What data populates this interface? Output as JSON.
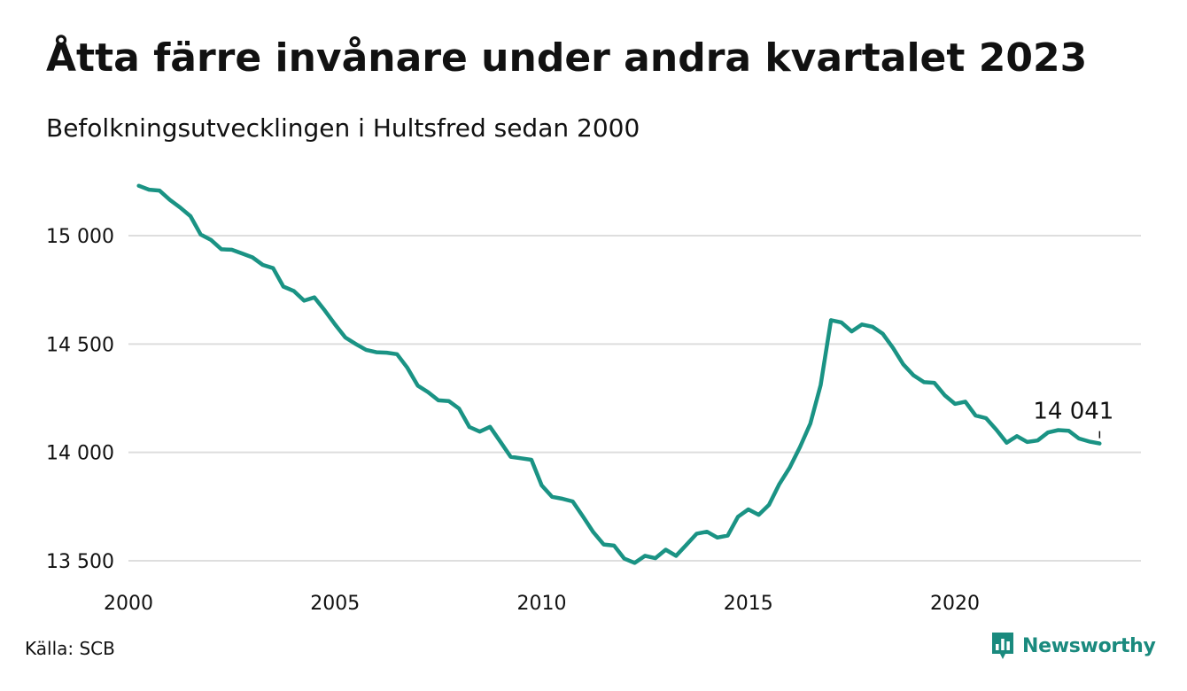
{
  "header": {
    "title": "Åtta färre invånare under andra kvartalet 2023",
    "subtitle": "Befolkningsutvecklingen i Hultsfred sedan 2000"
  },
  "footer": {
    "source": "Källa: SCB",
    "brand": "Newsworthy",
    "brand_icon": "bar-chart-speech-bubble-icon",
    "brand_color": "#1a8a7e"
  },
  "chart_data": {
    "type": "line",
    "title": "Åtta färre invånare under andra kvartalet 2023",
    "subtitle": "Befolkningsutvecklingen i Hultsfred sedan 2000",
    "xlabel": "",
    "ylabel": "",
    "xlim": [
      2000,
      2024.5
    ],
    "ylim": [
      13450,
      15250
    ],
    "x_ticks": [
      2000,
      2005,
      2010,
      2015,
      2020
    ],
    "x_tick_labels": [
      "2000",
      "2005",
      "2010",
      "2015",
      "2020"
    ],
    "y_ticks": [
      13500,
      14000,
      14500,
      15000
    ],
    "y_tick_labels": [
      "13 500",
      "14 000",
      "14 500",
      "15 000"
    ],
    "grid": "horizontal",
    "legend": "none",
    "line_color": "#1a9384",
    "end_label": "14 041",
    "series": [
      {
        "x": [
          2000.25,
          2000.5,
          2000.75,
          2001.0,
          2001.25,
          2001.5,
          2001.75,
          2002.0,
          2002.25,
          2002.5,
          2002.75,
          2003.0,
          2003.25,
          2003.5,
          2003.75,
          2004.0,
          2004.25,
          2004.5,
          2004.75,
          2005.0,
          2005.25,
          2005.5,
          2005.75,
          2006.0,
          2006.25,
          2006.5,
          2006.75,
          2007.0,
          2007.25,
          2007.5,
          2007.75,
          2008.0,
          2008.25,
          2008.5,
          2008.75,
          2009.0,
          2009.25,
          2009.5,
          2009.75,
          2010.0,
          2010.25,
          2010.5,
          2010.75,
          2011.0,
          2011.25,
          2011.5,
          2011.75,
          2012.0,
          2012.25,
          2012.5,
          2012.75,
          2013.0,
          2013.25,
          2013.5,
          2013.75,
          2014.0,
          2014.25,
          2014.5,
          2014.75,
          2015.0,
          2015.25,
          2015.5,
          2015.75,
          2016.0,
          2016.25,
          2016.5,
          2016.75,
          2017.0,
          2017.25,
          2017.5,
          2017.75,
          2018.0,
          2018.25,
          2018.5,
          2018.75,
          2019.0,
          2019.25,
          2019.5,
          2019.75,
          2020.0,
          2020.25,
          2020.5,
          2020.75,
          2021.0,
          2021.25,
          2021.5,
          2021.75,
          2022.0,
          2022.25,
          2022.5,
          2022.75,
          2023.0,
          2023.25,
          2023.5
        ],
        "y": [
          15230,
          15212,
          15208,
          15165,
          15130,
          15090,
          15005,
          14980,
          14937,
          14935,
          14918,
          14900,
          14865,
          14850,
          14765,
          14745,
          14700,
          14715,
          14655,
          14590,
          14530,
          14500,
          14473,
          14462,
          14460,
          14453,
          14390,
          14308,
          14278,
          14240,
          14237,
          14202,
          14117,
          14096,
          14118,
          14049,
          13980,
          13973,
          13966,
          13848,
          13795,
          13786,
          13774,
          13704,
          13632,
          13575,
          13570,
          13510,
          13490,
          13523,
          13512,
          13551,
          13523,
          13573,
          13625,
          13634,
          13607,
          13616,
          13703,
          13737,
          13712,
          13758,
          13854,
          13929,
          14025,
          14133,
          14310,
          14610,
          14600,
          14558,
          14590,
          14580,
          14548,
          14482,
          14406,
          14355,
          14324,
          14321,
          14264,
          14224,
          14234,
          14170,
          14158,
          14105,
          14045,
          14075,
          14048,
          14055,
          14092,
          14103,
          14100,
          14064,
          14050,
          14041
        ]
      }
    ]
  }
}
